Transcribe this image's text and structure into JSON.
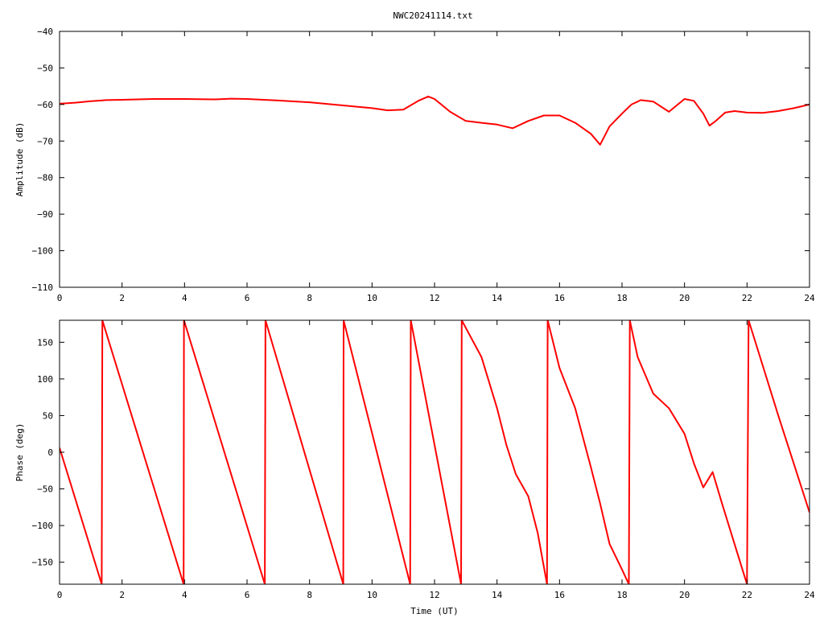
{
  "title": "NWC20241114.txt",
  "colors": {
    "series": "#ff0000",
    "axis": "#000000",
    "background": "#ffffff"
  },
  "chart_data": [
    {
      "type": "line",
      "title": "NWC20241114.txt",
      "xlabel": "",
      "ylabel": "Amplitude (dB)",
      "xlim": [
        0,
        24
      ],
      "ylim": [
        -110,
        -40
      ],
      "x_ticks": [
        0,
        2,
        4,
        6,
        8,
        10,
        12,
        14,
        16,
        18,
        20,
        22,
        24
      ],
      "y_ticks": [
        -110,
        -100,
        -90,
        -80,
        -70,
        -60,
        -50,
        -40
      ],
      "x_tick_labels": [
        "0",
        "2",
        "4",
        "6",
        "8",
        "10",
        "12",
        "14",
        "16",
        "18",
        "20",
        "22",
        "24"
      ],
      "y_tick_labels": [
        "−110",
        "−100",
        "−90",
        "−80",
        "−70",
        "−60",
        "−50",
        "−40"
      ],
      "grid": false,
      "series": [
        {
          "color": "#ff0000",
          "x": [
            0,
            0.5,
            1,
            1.5,
            2,
            3,
            4,
            5,
            5.5,
            6,
            7,
            8,
            9,
            10,
            10.5,
            11,
            11.5,
            11.8,
            12,
            12.5,
            13,
            13.5,
            14,
            14.5,
            15,
            15.5,
            16,
            16.5,
            17,
            17.3,
            17.6,
            18,
            18.3,
            18.6,
            19,
            19.5,
            20,
            20.3,
            20.6,
            20.8,
            21,
            21.3,
            21.6,
            22,
            22.5,
            23,
            23.5,
            24
          ],
          "y": [
            -59.8,
            -59.5,
            -59.1,
            -58.8,
            -58.7,
            -58.5,
            -58.5,
            -58.6,
            -58.4,
            -58.5,
            -58.9,
            -59.4,
            -60.2,
            -61,
            -61.6,
            -61.4,
            -58.9,
            -57.8,
            -58.5,
            -62,
            -64.5,
            -65,
            -65.5,
            -66.5,
            -64.5,
            -63,
            -63,
            -65,
            -68,
            -71,
            -66,
            -62.5,
            -60,
            -58.8,
            -59.2,
            -62,
            -58.5,
            -59,
            -62.5,
            -65.8,
            -64.5,
            -62.2,
            -61.8,
            -62.2,
            -62.3,
            -61.8,
            -61,
            -60
          ]
        }
      ]
    },
    {
      "type": "line",
      "title": "",
      "xlabel": "Time (UT)",
      "ylabel": "Phase (deg)",
      "xlim": [
        0,
        24
      ],
      "ylim": [
        -180,
        180
      ],
      "x_ticks": [
        0,
        2,
        4,
        6,
        8,
        10,
        12,
        14,
        16,
        18,
        20,
        22,
        24
      ],
      "y_ticks": [
        -150,
        -100,
        -50,
        0,
        50,
        100,
        150
      ],
      "x_tick_labels": [
        "0",
        "2",
        "4",
        "6",
        "8",
        "10",
        "12",
        "14",
        "16",
        "18",
        "20",
        "22",
        "24"
      ],
      "y_tick_labels": [
        "−150",
        "−100",
        "−50",
        "0",
        "50",
        "100",
        "150"
      ],
      "grid": false,
      "series": [
        {
          "color": "#ff0000",
          "x": [
            0,
            1.35,
            1.37,
            3.97,
            3.98,
            6.57,
            6.59,
            9.08,
            9.09,
            11.22,
            11.24,
            12.85,
            12.87,
            13.5,
            14,
            14.3,
            14.6,
            15,
            15.3,
            15.6,
            15.62,
            16,
            16.5,
            17,
            17.3,
            17.6,
            18,
            18.22,
            18.25,
            18.5,
            19,
            19.5,
            20,
            20.3,
            20.6,
            20.9,
            21.2,
            21.6,
            22,
            22.05,
            23,
            24
          ],
          "y": [
            6,
            -180,
            180,
            -180,
            180,
            -180,
            180,
            -180,
            180,
            -180,
            180,
            -180,
            180,
            130,
            60,
            10,
            -30,
            -60,
            -110,
            -180,
            180,
            115,
            60,
            -20,
            -70,
            -125,
            -160,
            -180,
            180,
            130,
            80,
            60,
            25,
            -15,
            -48,
            -27,
            -70,
            -125,
            -180,
            180,
            50,
            -82
          ]
        }
      ]
    }
  ]
}
